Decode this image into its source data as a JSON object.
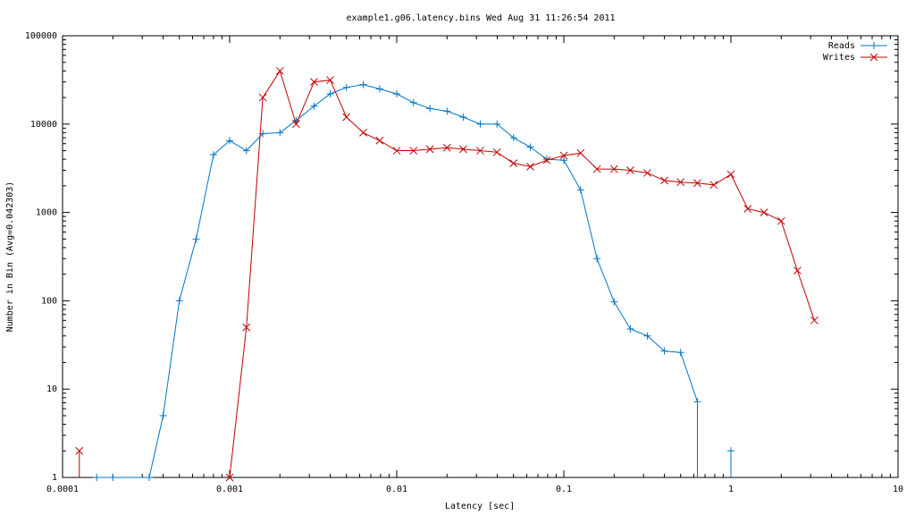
{
  "chart_data": {
    "type": "line",
    "title": "example1.g06.latency.bins Wed Aug 31 11:26:54 2011",
    "xlabel": "Latency [sec]",
    "ylabel": "Number in Bin  (Avg=0.042303)",
    "x_scale": "log",
    "y_scale": "log",
    "xlim": [
      0.0001,
      10
    ],
    "ylim": [
      1,
      100000
    ],
    "x_ticks": [
      {
        "value": 0.0001,
        "label": "0.0001"
      },
      {
        "value": 0.001,
        "label": "0.001"
      },
      {
        "value": 0.01,
        "label": "0.01"
      },
      {
        "value": 0.1,
        "label": "0.1"
      },
      {
        "value": 1,
        "label": "1"
      },
      {
        "value": 10,
        "label": "10"
      }
    ],
    "y_ticks": [
      {
        "value": 1,
        "label": "1"
      },
      {
        "value": 10,
        "label": "10"
      },
      {
        "value": 100,
        "label": "100"
      },
      {
        "value": 1000,
        "label": "1000"
      },
      {
        "value": 10000,
        "label": "10000"
      },
      {
        "value": 100000,
        "label": "100000"
      }
    ],
    "grid": false,
    "legend_position": "top-right",
    "series": [
      {
        "name": "Reads",
        "color": "#0073c6",
        "marker": "plus",
        "x": [
          0.00016,
          0.0002,
          0.00033,
          0.0004,
          0.0005,
          0.00063,
          0.0008,
          0.001,
          0.00126,
          0.00158,
          0.002,
          0.0025,
          0.0032,
          0.004,
          0.005,
          0.0063,
          0.0079,
          0.01,
          0.0126,
          0.0158,
          0.02,
          0.025,
          0.0316,
          0.0398,
          0.05,
          0.063,
          0.079,
          0.1,
          0.126,
          0.158,
          0.2,
          0.25,
          0.316,
          0.4,
          0.5,
          0.63
        ],
        "y": [
          1,
          1,
          1,
          5,
          100,
          500,
          4500,
          6500,
          5000,
          7800,
          8000,
          11000,
          16000,
          22000,
          26000,
          28000,
          25000,
          22000,
          17500,
          15000,
          14000,
          12000,
          10000,
          10000,
          7000,
          5500,
          4000,
          3900,
          1800,
          300,
          97,
          48,
          40,
          27,
          26,
          7.2
        ],
        "isolated_points": [
          {
            "x": 1.0,
            "y": 2
          }
        ]
      },
      {
        "name": "Writes",
        "color": "#c00000",
        "marker": "cross",
        "x": [
          0.001,
          0.00126,
          0.00158,
          0.002,
          0.0025,
          0.0032,
          0.004,
          0.005,
          0.0063,
          0.0079,
          0.01,
          0.0126,
          0.0158,
          0.02,
          0.025,
          0.0316,
          0.0398,
          0.05,
          0.063,
          0.079,
          0.1,
          0.126,
          0.158,
          0.2,
          0.25,
          0.316,
          0.4,
          0.5,
          0.63,
          0.79,
          1.0,
          1.26,
          1.58,
          2.0,
          2.5,
          3.16
        ],
        "y": [
          1,
          50,
          20000,
          40000,
          10000,
          30000,
          31500,
          12000,
          8000,
          6500,
          5000,
          5000,
          5200,
          5400,
          5200,
          5000,
          4800,
          3600,
          3300,
          3900,
          4400,
          4700,
          3100,
          3100,
          3000,
          2800,
          2300,
          2200,
          2150,
          2050,
          2700,
          1100,
          1000,
          800,
          220,
          60
        ],
        "isolated_points": [
          {
            "x": 0.000126,
            "y": 2
          }
        ]
      }
    ]
  }
}
